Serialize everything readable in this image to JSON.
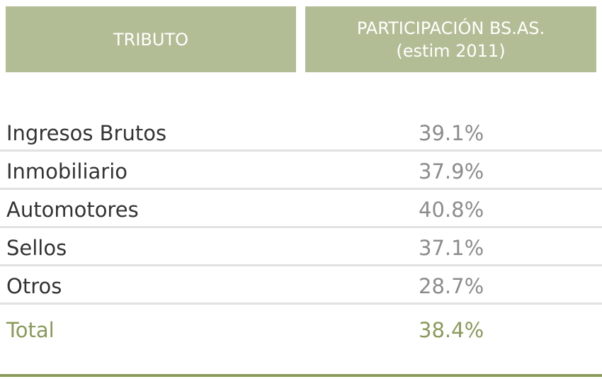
{
  "chart_data": {
    "type": "table",
    "columns": [
      "TRIBUTO",
      "PARTICIPACIÓN BS.AS.",
      "(estim 2011)"
    ],
    "rows": [
      {
        "tributo": "Ingresos Brutos",
        "participacion": "39.1%"
      },
      {
        "tributo": "Inmobiliario",
        "participacion": "37.9%"
      },
      {
        "tributo": "Automotores",
        "participacion": "40.8%"
      },
      {
        "tributo": "Sellos",
        "participacion": "37.1%"
      },
      {
        "tributo": "Otros",
        "participacion": "28.7%"
      }
    ],
    "total": {
      "tributo": "Total",
      "participacion": "38.4%"
    }
  },
  "colors": {
    "header_bg": "#b3bd95",
    "total_green": "#8a9a5b",
    "divider": "#e1e1e1"
  }
}
